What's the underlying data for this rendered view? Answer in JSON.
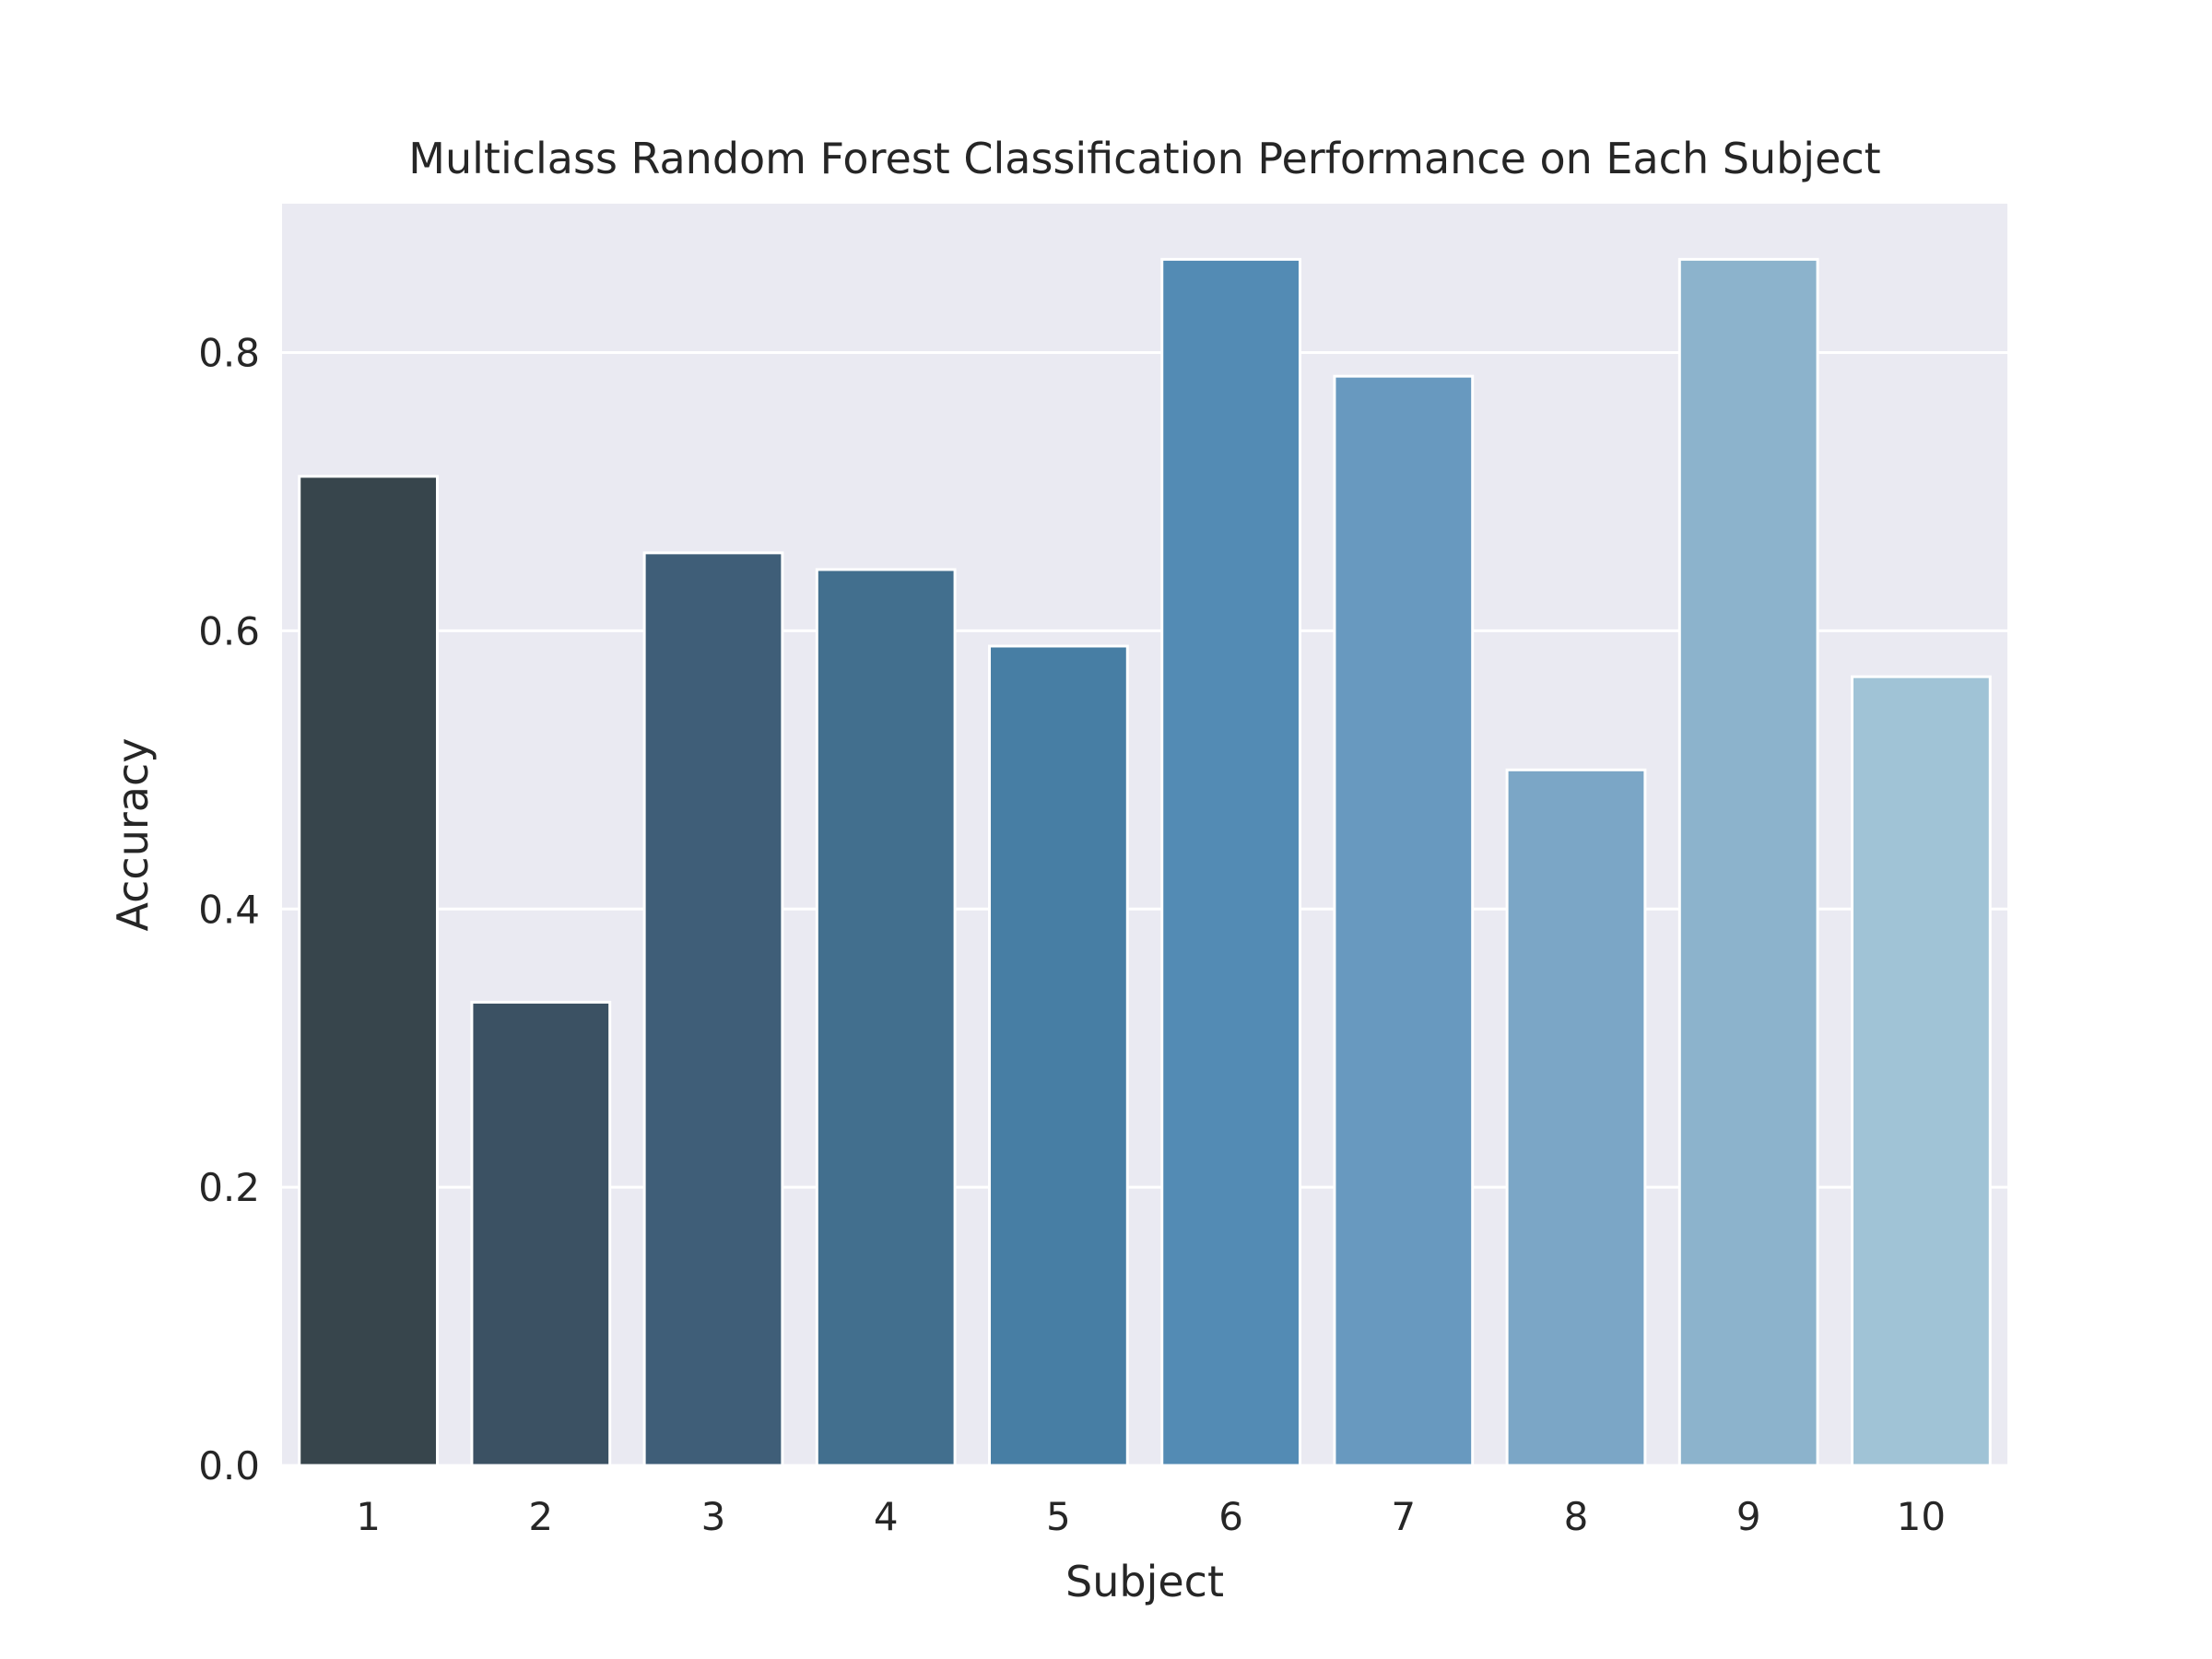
{
  "chart_data": {
    "type": "bar",
    "title": "Multiclass Random Forest Classification Performance on Each Subject",
    "xlabel": "Subject",
    "ylabel": "Accuracy",
    "categories": [
      "1",
      "2",
      "3",
      "4",
      "5",
      "6",
      "7",
      "8",
      "9",
      "10"
    ],
    "values": [
      0.711,
      0.333,
      0.656,
      0.644,
      0.589,
      0.867,
      0.783,
      0.5,
      0.867,
      0.567
    ],
    "ylim": [
      0,
      0.907
    ],
    "yticks": [
      0.0,
      0.2,
      0.4,
      0.6,
      0.8
    ],
    "ytick_labels": [
      "0.0",
      "0.2",
      "0.4",
      "0.6",
      "0.8"
    ],
    "grid": true,
    "style": "seaborn-darkgrid",
    "colors": [
      "#37454c",
      "#3b5163",
      "#3f5e78",
      "#426f8e",
      "#477ea4",
      "#538bb4",
      "#6899bf",
      "#7ba6c6",
      "#8cb3cc",
      "#a0c3d6"
    ],
    "background_color": "#eaeaf2",
    "grid_color": "#ffffff"
  }
}
